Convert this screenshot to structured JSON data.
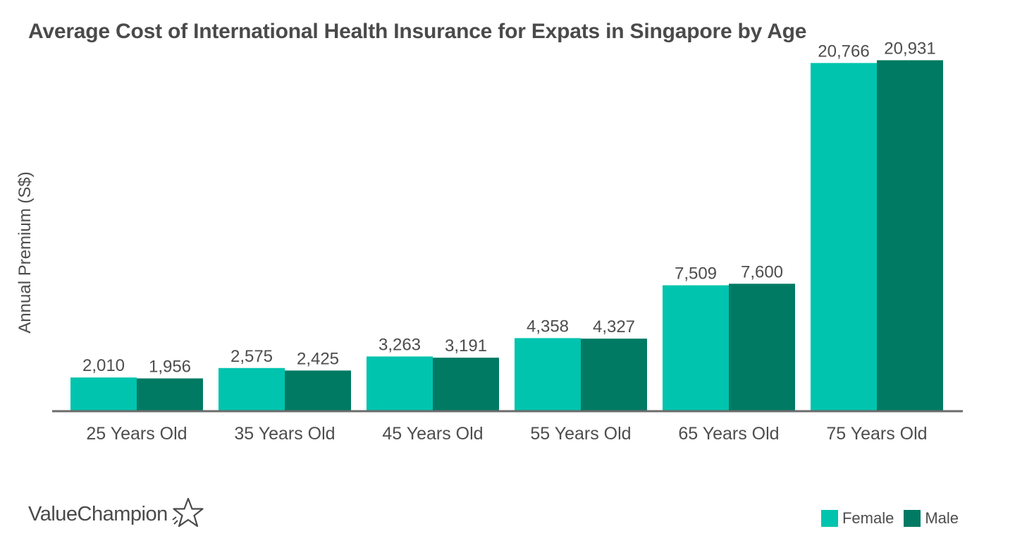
{
  "colors": {
    "female": "#00c4ae",
    "male": "#007a63",
    "axis": "#6b6b6b",
    "text": "#4d4d4d"
  },
  "chart_data": {
    "type": "bar",
    "title": "Average Cost of International Health Insurance for Expats in Singapore by Age",
    "xlabel": "",
    "ylabel": "Annual Premium (S$)",
    "ylim": [
      0,
      22000
    ],
    "grid": false,
    "legend_position": "bottom-right",
    "categories": [
      "25 Years Old",
      "35 Years Old",
      "45 Years Old",
      "55 Years Old",
      "65 Years Old",
      "75 Years Old"
    ],
    "series": [
      {
        "name": "Female",
        "values": [
          2010,
          2575,
          3263,
          4358,
          7509,
          20766
        ],
        "labels": [
          "2,010",
          "2,575",
          "3,263",
          "4,358",
          "7,509",
          "20,766"
        ]
      },
      {
        "name": "Male",
        "values": [
          1956,
          2425,
          3191,
          4327,
          7600,
          20931
        ],
        "labels": [
          "1,956",
          "2,425",
          "3,191",
          "4,327",
          "7,600",
          "20,931"
        ]
      }
    ]
  },
  "branding": {
    "name": "ValueChampion",
    "icon": "star-outline-icon"
  },
  "legend": {
    "female_label": "Female",
    "male_label": "Male"
  }
}
